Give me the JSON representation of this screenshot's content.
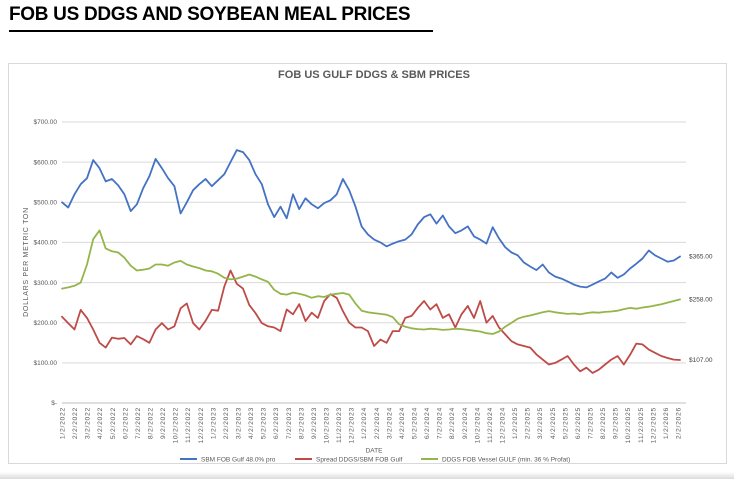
{
  "page": {
    "title": "FOB US DDGS AND SOYBEAN MEAL PRICES"
  },
  "chart_data": {
    "type": "line",
    "title": "FOB US GULF DDGS & SBM PRICES",
    "xlabel": "DATE",
    "ylabel": "DOLLARS PER METRIC TON",
    "ylim": [
      0,
      700
    ],
    "grid": "horizontal",
    "legend_position": "bottom",
    "colors": {
      "grid": "#d9d9d9",
      "axis": "#bfbfbf",
      "text": "#595959",
      "title": "#595959",
      "end_label": "#404040",
      "frame": "#d9d9d9"
    },
    "y_ticks": [
      {
        "value": 700,
        "label": "$700.00"
      },
      {
        "value": 600,
        "label": "$600.00"
      },
      {
        "value": 500,
        "label": "$500.00"
      },
      {
        "value": 400,
        "label": "$400.00"
      },
      {
        "value": 300,
        "label": "$300.00"
      },
      {
        "value": 200,
        "label": "$200.00"
      },
      {
        "value": 100,
        "label": "$100.00"
      },
      {
        "value": 0,
        "label": "$-"
      }
    ],
    "x_labels": [
      "1/2/2022",
      "2/2/2022",
      "3/2/2022",
      "4/2/2022",
      "5/2/2022",
      "6/2/2022",
      "7/2/2022",
      "8/2/2022",
      "9/2/2022",
      "10/2/2022",
      "11/2/2022",
      "12/2/2022",
      "1/2/2023",
      "2/2/2023",
      "3/2/2023",
      "4/2/2023",
      "5/2/2023",
      "6/2/2023",
      "7/2/2023",
      "8/2/2023",
      "9/2/2023",
      "10/2/2023",
      "11/2/2023",
      "12/2/2023",
      "1/2/2024",
      "2/2/2024",
      "3/2/2024",
      "4/2/2024",
      "5/2/2024",
      "6/2/2024",
      "7/2/2024",
      "8/2/2024",
      "9/2/2024",
      "10/2/2024",
      "11/2/2024",
      "12/2/2024",
      "1/2/2025",
      "2/2/2025",
      "3/2/2025",
      "4/2/2025",
      "5/2/2025",
      "6/2/2025",
      "7/2/2025",
      "8/2/2025",
      "9/2/2025",
      "10/2/2025",
      "11/2/2025",
      "12/2/2025",
      "1/2/2026",
      "2/2/2026"
    ],
    "series": [
      {
        "id": "sbm",
        "name": "SBM FOB Gulf 48.0% pro",
        "color": "#4472c4",
        "values": [
          500,
          487,
          520,
          545,
          560,
          605,
          585,
          552,
          558,
          542,
          520,
          478,
          495,
          535,
          565,
          608,
          585,
          560,
          540,
          472,
          500,
          530,
          545,
          558,
          540,
          555,
          570,
          600,
          630,
          625,
          605,
          570,
          545,
          495,
          463,
          489,
          460,
          520,
          483,
          510,
          495,
          485,
          498,
          505,
          520,
          558,
          530,
          490,
          440,
          420,
          407,
          400,
          390,
          397,
          403,
          407,
          420,
          445,
          463,
          470,
          447,
          467,
          440,
          423,
          430,
          440,
          415,
          407,
          397,
          438,
          410,
          388,
          375,
          368,
          350,
          340,
          331,
          345,
          325,
          315,
          310,
          303,
          295,
          290,
          288,
          295,
          303,
          310,
          325,
          312,
          320,
          335,
          347,
          360,
          380,
          368,
          360,
          352,
          355,
          365
        ]
      },
      {
        "id": "spread",
        "name": "Spread DDGS/SBM FOB Gulf",
        "color": "#be4b48",
        "values": [
          215,
          199,
          183,
          232,
          212,
          183,
          150,
          138,
          163,
          160,
          162,
          146,
          167,
          159,
          150,
          183,
          199,
          183,
          191,
          236,
          248,
          199,
          183,
          205,
          232,
          230,
          290,
          330,
          297,
          285,
          244,
          224,
          199,
          191,
          188,
          179,
          233,
          221,
          246,
          204,
          225,
          212,
          254,
          271,
          262,
          229,
          200,
          188,
          188,
          179,
          142,
          158,
          150,
          179,
          179,
          212,
          217,
          237,
          254,
          233,
          246,
          212,
          221,
          188,
          221,
          242,
          212,
          254,
          200,
          217,
          188,
          171,
          154,
          146,
          142,
          138,
          121,
          108,
          96,
          100,
          108,
          117,
          96,
          79,
          88,
          75,
          83,
          96,
          108,
          117,
          96,
          120,
          148,
          146,
          133,
          125,
          117,
          112,
          108,
          107
        ]
      },
      {
        "id": "ddgs",
        "name": "DDGS FOB Vessel GULF  (min. 36 % Profat)",
        "color": "#94b54a",
        "values": [
          285,
          288,
          292,
          300,
          345,
          408,
          430,
          385,
          378,
          375,
          362,
          342,
          330,
          332,
          335,
          345,
          345,
          342,
          350,
          354,
          345,
          340,
          336,
          330,
          328,
          322,
          312,
          308,
          310,
          315,
          320,
          315,
          308,
          302,
          282,
          272,
          270,
          275,
          272,
          268,
          262,
          266,
          264,
          270,
          272,
          274,
          270,
          248,
          230,
          226,
          224,
          222,
          220,
          214,
          196,
          190,
          186,
          184,
          183,
          185,
          184,
          182,
          183,
          185,
          184,
          182,
          180,
          178,
          174,
          172,
          178,
          190,
          200,
          210,
          215,
          218,
          222,
          226,
          229,
          226,
          224,
          222,
          223,
          221,
          224,
          226,
          225,
          227,
          228,
          230,
          234,
          237,
          235,
          238,
          240,
          243,
          246,
          250,
          254,
          258
        ]
      }
    ],
    "end_labels": [
      {
        "series": "sbm",
        "text": "$365.00",
        "value": 365
      },
      {
        "series": "ddgs",
        "text": "$258.00",
        "value": 258
      },
      {
        "series": "spread",
        "text": "$107.00",
        "value": 107
      }
    ]
  }
}
